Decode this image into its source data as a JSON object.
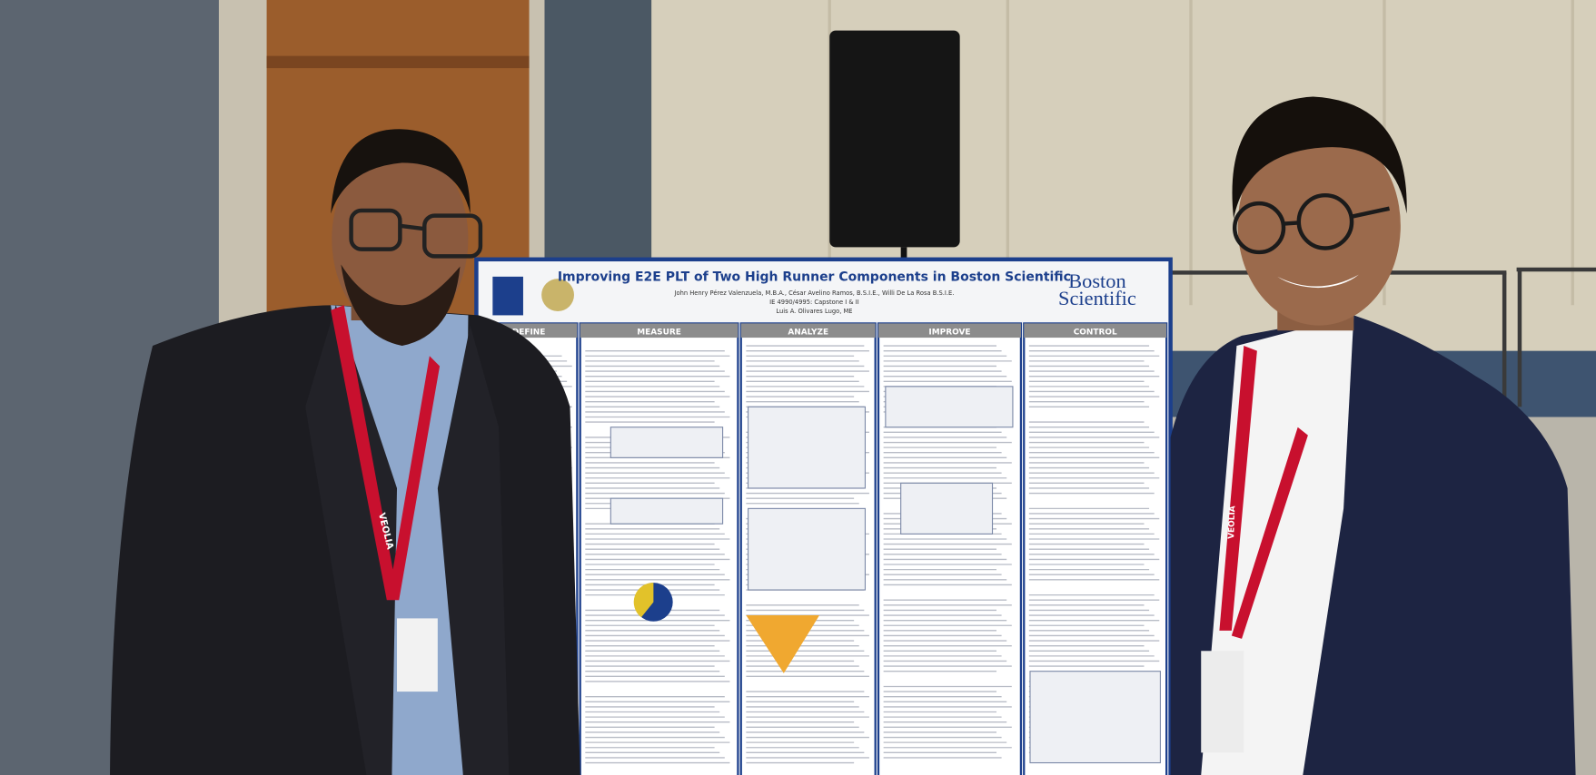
{
  "poster": {
    "title": "Improving E2E PLT of Two High Runner Components in Boston Scientific",
    "authors": "John Henry Pérez Valenzuela, M.B.A., César Avelino Ramos, B.S.I.E., Willi De La Rosa B.S.I.E.",
    "course": "IE 4990/4995: Capstone I & II",
    "advisor": "Luis A. Olivares Lugo, ME",
    "logo": [
      "Boston",
      "Scientific"
    ],
    "sections": [
      "DEFINE",
      "MEASURE",
      "ANALYZE",
      "IMPROVE",
      "CONTROL"
    ]
  },
  "lanyard": "VEOLIA"
}
